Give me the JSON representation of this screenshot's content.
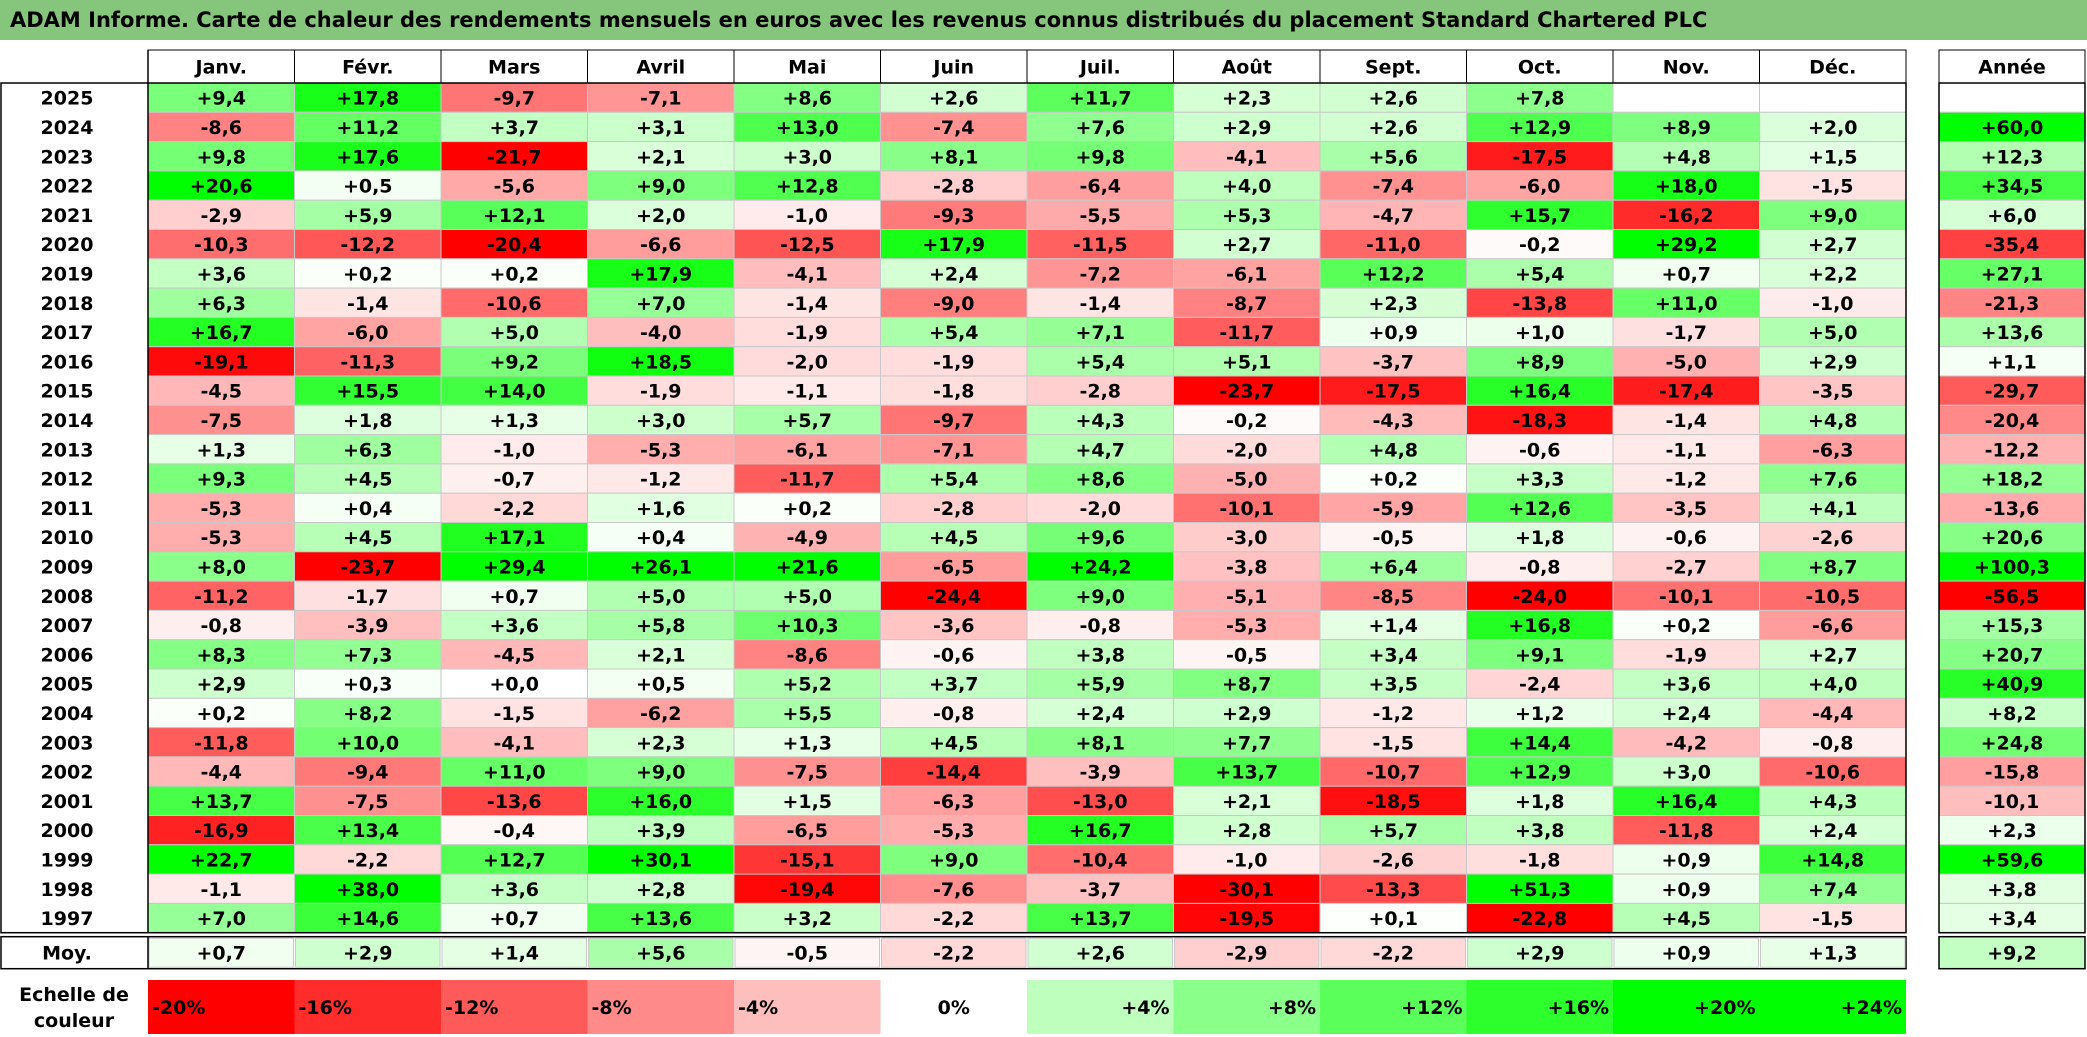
{
  "title": "ADAM Informe. Carte de chaleur des rendements mensuels en euros avec les revenus connus distribués du placement Standard Chartered PLC",
  "chart_data": {
    "type": "heatmap",
    "months": [
      "Janv.",
      "Févr.",
      "Mars",
      "Avril",
      "Mai",
      "Juin",
      "Juil.",
      "Août",
      "Sept.",
      "Oct.",
      "Nov.",
      "Déc."
    ],
    "year_header": "Année",
    "rows": [
      {
        "year": "2025",
        "values": [
          "+9,4",
          "+17,8",
          "-9,7",
          "-7,1",
          "+8,6",
          "+2,6",
          "+11,7",
          "+2,3",
          "+2,6",
          "+7,8",
          "",
          ""
        ],
        "annual": ""
      },
      {
        "year": "2024",
        "values": [
          "-8,6",
          "+11,2",
          "+3,7",
          "+3,1",
          "+13,0",
          "-7,4",
          "+7,6",
          "+2,9",
          "+2,6",
          "+12,9",
          "+8,9",
          "+2,0"
        ],
        "annual": "+60,0"
      },
      {
        "year": "2023",
        "values": [
          "+9,8",
          "+17,6",
          "-21,7",
          "+2,1",
          "+3,0",
          "+8,1",
          "+9,8",
          "-4,1",
          "+5,6",
          "-17,5",
          "+4,8",
          "+1,5"
        ],
        "annual": "+12,3"
      },
      {
        "year": "2022",
        "values": [
          "+20,6",
          "+0,5",
          "-5,6",
          "+9,0",
          "+12,8",
          "-2,8",
          "-6,4",
          "+4,0",
          "-7,4",
          "-6,0",
          "+18,0",
          "-1,5"
        ],
        "annual": "+34,5"
      },
      {
        "year": "2021",
        "values": [
          "-2,9",
          "+5,9",
          "+12,1",
          "+2,0",
          "-1,0",
          "-9,3",
          "-5,5",
          "+5,3",
          "-4,7",
          "+15,7",
          "-16,2",
          "+9,0"
        ],
        "annual": "+6,0"
      },
      {
        "year": "2020",
        "values": [
          "-10,3",
          "-12,2",
          "-20,4",
          "-6,6",
          "-12,5",
          "+17,9",
          "-11,5",
          "+2,7",
          "-11,0",
          "-0,2",
          "+29,2",
          "+2,7"
        ],
        "annual": "-35,4"
      },
      {
        "year": "2019",
        "values": [
          "+3,6",
          "+0,2",
          "+0,2",
          "+17,9",
          "-4,1",
          "+2,4",
          "-7,2",
          "-6,1",
          "+12,2",
          "+5,4",
          "+0,7",
          "+2,2"
        ],
        "annual": "+27,1"
      },
      {
        "year": "2018",
        "values": [
          "+6,3",
          "-1,4",
          "-10,6",
          "+7,0",
          "-1,4",
          "-9,0",
          "-1,4",
          "-8,7",
          "+2,3",
          "-13,8",
          "+11,0",
          "-1,0"
        ],
        "annual": "-21,3"
      },
      {
        "year": "2017",
        "values": [
          "+16,7",
          "-6,0",
          "+5,0",
          "-4,0",
          "-1,9",
          "+5,4",
          "+7,1",
          "-11,7",
          "+0,9",
          "+1,0",
          "-1,7",
          "+5,0"
        ],
        "annual": "+13,6"
      },
      {
        "year": "2016",
        "values": [
          "-19,1",
          "-11,3",
          "+9,2",
          "+18,5",
          "-2,0",
          "-1,9",
          "+5,4",
          "+5,1",
          "-3,7",
          "+8,9",
          "-5,0",
          "+2,9"
        ],
        "annual": "+1,1"
      },
      {
        "year": "2015",
        "values": [
          "-4,5",
          "+15,5",
          "+14,0",
          "-1,9",
          "-1,1",
          "-1,8",
          "-2,8",
          "-23,7",
          "-17,5",
          "+16,4",
          "-17,4",
          "-3,5"
        ],
        "annual": "-29,7"
      },
      {
        "year": "2014",
        "values": [
          "-7,5",
          "+1,8",
          "+1,3",
          "+3,0",
          "+5,7",
          "-9,7",
          "+4,3",
          "-0,2",
          "-4,3",
          "-18,3",
          "-1,4",
          "+4,8"
        ],
        "annual": "-20,4"
      },
      {
        "year": "2013",
        "values": [
          "+1,3",
          "+6,3",
          "-1,0",
          "-5,3",
          "-6,1",
          "-7,1",
          "+4,7",
          "-2,0",
          "+4,8",
          "-0,6",
          "-1,1",
          "-6,3"
        ],
        "annual": "-12,2"
      },
      {
        "year": "2012",
        "values": [
          "+9,3",
          "+4,5",
          "-0,7",
          "-1,2",
          "-11,7",
          "+5,4",
          "+8,6",
          "-5,0",
          "+0,2",
          "+3,3",
          "-1,2",
          "+7,6"
        ],
        "annual": "+18,2"
      },
      {
        "year": "2011",
        "values": [
          "-5,3",
          "+0,4",
          "-2,2",
          "+1,6",
          "+0,2",
          "-2,8",
          "-2,0",
          "-10,1",
          "-5,9",
          "+12,6",
          "-3,5",
          "+4,1"
        ],
        "annual": "-13,6"
      },
      {
        "year": "2010",
        "values": [
          "-5,3",
          "+4,5",
          "+17,1",
          "+0,4",
          "-4,9",
          "+4,5",
          "+9,6",
          "-3,0",
          "-0,5",
          "+1,8",
          "-0,6",
          "-2,6"
        ],
        "annual": "+20,6"
      },
      {
        "year": "2009",
        "values": [
          "+8,0",
          "-23,7",
          "+29,4",
          "+26,1",
          "+21,6",
          "-6,5",
          "+24,2",
          "-3,8",
          "+6,4",
          "-0,8",
          "-2,7",
          "+8,7"
        ],
        "annual": "+100,3"
      },
      {
        "year": "2008",
        "values": [
          "-11,2",
          "-1,7",
          "+0,7",
          "+5,0",
          "+5,0",
          "-24,4",
          "+9,0",
          "-5,1",
          "-8,5",
          "-24,0",
          "-10,1",
          "-10,5"
        ],
        "annual": "-56,5"
      },
      {
        "year": "2007",
        "values": [
          "-0,8",
          "-3,9",
          "+3,6",
          "+5,8",
          "+10,3",
          "-3,6",
          "-0,8",
          "-5,3",
          "+1,4",
          "+16,8",
          "+0,2",
          "-6,6"
        ],
        "annual": "+15,3"
      },
      {
        "year": "2006",
        "values": [
          "+8,3",
          "+7,3",
          "-4,5",
          "+2,1",
          "-8,6",
          "-0,6",
          "+3,8",
          "-0,5",
          "+3,4",
          "+9,1",
          "-1,9",
          "+2,7"
        ],
        "annual": "+20,7"
      },
      {
        "year": "2005",
        "values": [
          "+2,9",
          "+0,3",
          "+0,0",
          "+0,5",
          "+5,2",
          "+3,7",
          "+5,9",
          "+8,7",
          "+3,5",
          "-2,4",
          "+3,6",
          "+4,0"
        ],
        "annual": "+40,9"
      },
      {
        "year": "2004",
        "values": [
          "+0,2",
          "+8,2",
          "-1,5",
          "-6,2",
          "+5,5",
          "-0,8",
          "+2,4",
          "+2,9",
          "-1,2",
          "+1,2",
          "+2,4",
          "-4,4"
        ],
        "annual": "+8,2"
      },
      {
        "year": "2003",
        "values": [
          "-11,8",
          "+10,0",
          "-4,1",
          "+2,3",
          "+1,3",
          "+4,5",
          "+8,1",
          "+7,7",
          "-1,5",
          "+14,4",
          "-4,2",
          "-0,8"
        ],
        "annual": "+24,8"
      },
      {
        "year": "2002",
        "values": [
          "-4,4",
          "-9,4",
          "+11,0",
          "+9,0",
          "-7,5",
          "-14,4",
          "-3,9",
          "+13,7",
          "-10,7",
          "+12,9",
          "+3,0",
          "-10,6"
        ],
        "annual": "-15,8"
      },
      {
        "year": "2001",
        "values": [
          "+13,7",
          "-7,5",
          "-13,6",
          "+16,0",
          "+1,5",
          "-6,3",
          "-13,0",
          "+2,1",
          "-18,5",
          "+1,8",
          "+16,4",
          "+4,3"
        ],
        "annual": "-10,1"
      },
      {
        "year": "2000",
        "values": [
          "-16,9",
          "+13,4",
          "-0,4",
          "+3,9",
          "-6,5",
          "-5,3",
          "+16,7",
          "+2,8",
          "+5,7",
          "+3,8",
          "-11,8",
          "+2,4"
        ],
        "annual": "+2,3"
      },
      {
        "year": "1999",
        "values": [
          "+22,7",
          "-2,2",
          "+12,7",
          "+30,1",
          "-15,1",
          "+9,0",
          "-10,4",
          "-1,0",
          "-2,6",
          "-1,8",
          "+0,9",
          "+14,8"
        ],
        "annual": "+59,6"
      },
      {
        "year": "1998",
        "values": [
          "-1,1",
          "+38,0",
          "+3,6",
          "+2,8",
          "-19,4",
          "-7,6",
          "-3,7",
          "-30,1",
          "-13,3",
          "+51,3",
          "+0,9",
          "+7,4"
        ],
        "annual": "+3,8"
      },
      {
        "year": "1997",
        "values": [
          "+7,0",
          "+14,6",
          "+0,7",
          "+13,6",
          "+3,2",
          "-2,2",
          "+13,7",
          "-19,5",
          "+0,1",
          "-22,8",
          "+4,5",
          "-1,5"
        ],
        "annual": "+3,4"
      }
    ],
    "average": {
      "label": "Moy.",
      "values": [
        "+0,7",
        "+2,9",
        "+1,4",
        "+5,6",
        "-0,5",
        "-2,2",
        "+2,6",
        "-2,9",
        "-2,2",
        "+2,9",
        "+0,9",
        "+1,3"
      ],
      "annual": "+9,2"
    },
    "color_scale": {
      "label_line1": "Echelle de",
      "label_line2": "couleur",
      "steps": [
        "-20%",
        "-16%",
        "-12%",
        "-8%",
        "-4%",
        "0%",
        "+4%",
        "+8%",
        "+12%",
        "+16%",
        "+20%",
        "+24%"
      ],
      "min_color": "#ff0000",
      "zero_color": "#ffffff",
      "max_color": "#00ff00",
      "annual_scale_max": 50
    }
  }
}
